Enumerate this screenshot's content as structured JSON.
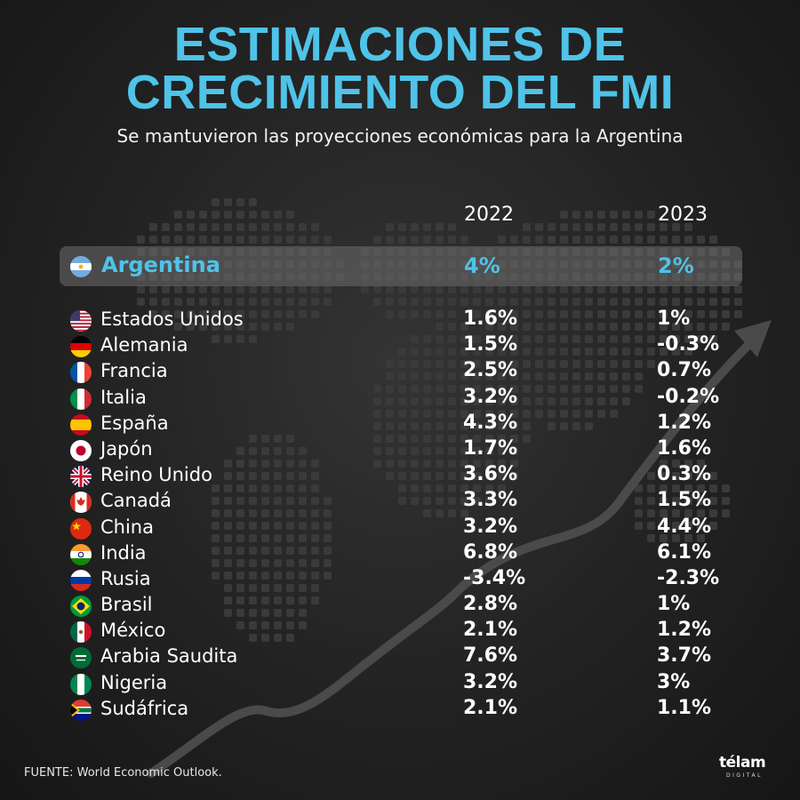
{
  "title_line1": "ESTIMACIONES DE",
  "title_line2": "CRECIMIENTO DEL FMI",
  "subtitle": "Se mantuvieron las proyecciones económicas para la Argentina",
  "source": "FUENTE: World Economic Outlook.",
  "logo": "télam",
  "logo_sub": "DIGITAL",
  "colors": {
    "accent": "#4fc3e8",
    "text": "#ffffff",
    "highlight_bg": "#555555"
  },
  "chart_data": {
    "type": "table",
    "title": "ESTIMACIONES DE CRECIMIENTO DEL FMI",
    "subtitle": "Se mantuvieron las proyecciones económicas para la Argentina",
    "columns": [
      "2022",
      "2023"
    ],
    "highlight": {
      "country": "Argentina",
      "flag": "argentina-flag-icon",
      "v2022": "4%",
      "v2023": "2%"
    },
    "rows": [
      {
        "country": "Estados Unidos",
        "flag": "usa-flag-icon",
        "v2022": "1.6%",
        "v2023": "1%"
      },
      {
        "country": "Alemania",
        "flag": "germany-flag-icon",
        "v2022": "1.5%",
        "v2023": "-0.3%"
      },
      {
        "country": "Francia",
        "flag": "france-flag-icon",
        "v2022": "2.5%",
        "v2023": "0.7%"
      },
      {
        "country": "Italia",
        "flag": "italy-flag-icon",
        "v2022": "3.2%",
        "v2023": "-0.2%"
      },
      {
        "country": "España",
        "flag": "spain-flag-icon",
        "v2022": "4.3%",
        "v2023": "1.2%"
      },
      {
        "country": "Japón",
        "flag": "japan-flag-icon",
        "v2022": "1.7%",
        "v2023": "1.6%"
      },
      {
        "country": "Reino Unido",
        "flag": "uk-flag-icon",
        "v2022": "3.6%",
        "v2023": "0.3%"
      },
      {
        "country": "Canadá",
        "flag": "canada-flag-icon",
        "v2022": "3.3%",
        "v2023": "1.5%"
      },
      {
        "country": "China",
        "flag": "china-flag-icon",
        "v2022": "3.2%",
        "v2023": "4.4%"
      },
      {
        "country": "India",
        "flag": "india-flag-icon",
        "v2022": "6.8%",
        "v2023": "6.1%"
      },
      {
        "country": "Rusia",
        "flag": "russia-flag-icon",
        "v2022": "-3.4%",
        "v2023": "-2.3%"
      },
      {
        "country": "Brasil",
        "flag": "brazil-flag-icon",
        "v2022": "2.8%",
        "v2023": "1%"
      },
      {
        "country": "México",
        "flag": "mexico-flag-icon",
        "v2022": "2.1%",
        "v2023": "1.2%"
      },
      {
        "country": "Arabia Saudita",
        "flag": "saudi-arabia-flag-icon",
        "v2022": "7.6%",
        "v2023": "3.7%"
      },
      {
        "country": "Nigeria",
        "flag": "nigeria-flag-icon",
        "v2022": "3.2%",
        "v2023": "3%"
      },
      {
        "country": "Sudáfrica",
        "flag": "south-africa-flag-icon",
        "v2022": "2.1%",
        "v2023": "1.1%"
      }
    ]
  }
}
